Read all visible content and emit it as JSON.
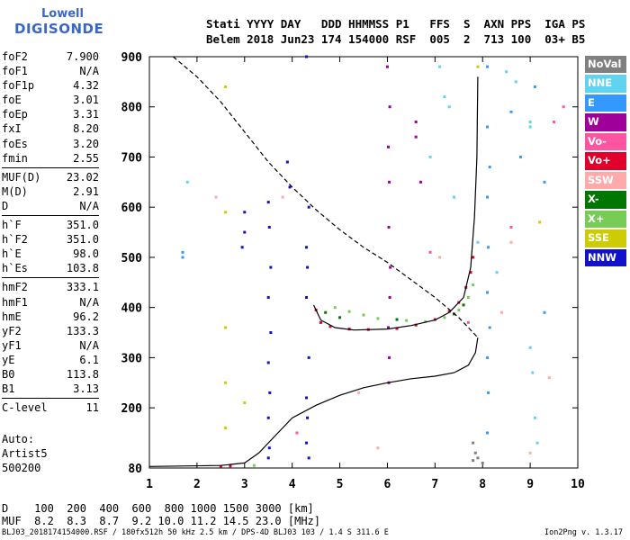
{
  "logo": {
    "line1": "Lowell",
    "line2": "DIGISONDE"
  },
  "header": {
    "labels": "Stati YYYY DAY   DDD HHMMSS P1   FFS  S  AXN PPS  IGA PS",
    "values": "Belem 2018 Jun23 174 154000 RSF  005  2  713 100  03+ B5"
  },
  "params_group1": [
    {
      "name": "foF2",
      "value": "7.900"
    },
    {
      "name": "foF1",
      "value": "N/A"
    },
    {
      "name": "foF1p",
      "value": "4.32"
    },
    {
      "name": "foE",
      "value": "3.01"
    },
    {
      "name": "foEp",
      "value": "3.31"
    },
    {
      "name": "fxI",
      "value": "8.20"
    },
    {
      "name": "foEs",
      "value": "3.20"
    },
    {
      "name": "fmin",
      "value": "2.55"
    }
  ],
  "params_group2": [
    {
      "name": "MUF(D)",
      "value": "23.02"
    },
    {
      "name": "M(D)",
      "value": "2.91"
    },
    {
      "name": "D",
      "value": "N/A"
    }
  ],
  "params_group3": [
    {
      "name": "h`F",
      "value": "351.0"
    },
    {
      "name": "h`F2",
      "value": "351.0"
    },
    {
      "name": "h`E",
      "value": "98.0"
    },
    {
      "name": "h`Es",
      "value": "103.8"
    }
  ],
  "params_group4": [
    {
      "name": "hmF2",
      "value": "333.1"
    },
    {
      "name": "hmF1",
      "value": "N/A"
    },
    {
      "name": "hmE",
      "value": "96.2"
    },
    {
      "name": "yF2",
      "value": "133.3"
    },
    {
      "name": "yF1",
      "value": "N/A"
    },
    {
      "name": "yE",
      "value": "6.1"
    },
    {
      "name": "B0",
      "value": "113.8"
    },
    {
      "name": "B1",
      "value": "3.13"
    }
  ],
  "params_group5": [
    {
      "name": "C-level",
      "value": "11"
    }
  ],
  "auto": {
    "line1": "Auto:",
    "line2": "Artist5",
    "line3": "500200"
  },
  "legend": [
    {
      "label": "NoVal",
      "color": "#808080"
    },
    {
      "label": "NNE",
      "color": "#5fd3f0"
    },
    {
      "label": "E",
      "color": "#3399ff"
    },
    {
      "label": "W",
      "color": "#a0009a"
    },
    {
      "label": "Vo-",
      "color": "#ff55a0"
    },
    {
      "label": "Vo+",
      "color": "#e0002a"
    },
    {
      "label": "SSW",
      "color": "#ffaaaa"
    },
    {
      "label": "X-",
      "color": "#007700"
    },
    {
      "label": "X+",
      "color": "#77cc55"
    },
    {
      "label": "SSE",
      "color": "#cccc00"
    },
    {
      "label": "NNW",
      "color": "#1111cc"
    }
  ],
  "muf_table": {
    "d_line": "D    100  200  400  600  800 1000 1500 3000 [km]",
    "muf_line": "MUF  8.2  8.3  8.7  9.2 10.0 11.2 14.5 23.0 [MHz]"
  },
  "footer": {
    "left": "BLJ03_2018174154000.RSF / 180fx512h 50 kHz 2.5 km / DPS-4D BLJ03 103 / 1.4 S 311.6 E",
    "right": "Ion2Png v. 1.3.17"
  },
  "chart_data": {
    "type": "scatter",
    "xlim": [
      1,
      10
    ],
    "ylim": [
      80,
      900
    ],
    "x_ticks": [
      "1",
      "2",
      "3",
      "4",
      "5",
      "6",
      "7",
      "8",
      "9",
      "10"
    ],
    "y_ticks": [
      "80",
      "200",
      "300",
      "400",
      "500",
      "600",
      "700",
      "800",
      "900"
    ],
    "y_tick_values": [
      80,
      200,
      300,
      400,
      500,
      600,
      700,
      800,
      900
    ],
    "grid": false,
    "legend_position": "right",
    "series": [
      {
        "type": "line",
        "style": "solid",
        "color": "#000000",
        "points": [
          [
            1.0,
            83
          ],
          [
            2.5,
            85
          ],
          [
            3.0,
            90
          ],
          [
            3.3,
            110
          ],
          [
            3.7,
            150
          ],
          [
            4.0,
            180
          ],
          [
            4.5,
            205
          ],
          [
            5.0,
            225
          ],
          [
            5.5,
            240
          ],
          [
            6.0,
            250
          ],
          [
            6.5,
            258
          ],
          [
            7.0,
            263
          ],
          [
            7.4,
            270
          ],
          [
            7.7,
            285
          ],
          [
            7.85,
            310
          ],
          [
            7.9,
            340
          ]
        ]
      },
      {
        "type": "line",
        "style": "solid",
        "color": "#000000",
        "points": [
          [
            4.45,
            405
          ],
          [
            4.6,
            375
          ],
          [
            4.9,
            360
          ],
          [
            5.3,
            355
          ],
          [
            6.0,
            357
          ],
          [
            6.5,
            364
          ],
          [
            7.0,
            375
          ],
          [
            7.3,
            390
          ],
          [
            7.6,
            420
          ],
          [
            7.75,
            480
          ],
          [
            7.83,
            580
          ],
          [
            7.88,
            700
          ],
          [
            7.9,
            860
          ]
        ]
      },
      {
        "type": "line",
        "style": "dashed",
        "color": "#000000",
        "points": [
          [
            1.5,
            900
          ],
          [
            2.0,
            860
          ],
          [
            2.5,
            810
          ],
          [
            3.0,
            750
          ],
          [
            3.5,
            690
          ],
          [
            4.0,
            640
          ],
          [
            4.5,
            595
          ],
          [
            5.0,
            555
          ],
          [
            5.5,
            520
          ],
          [
            6.0,
            490
          ],
          [
            6.5,
            455
          ],
          [
            7.0,
            420
          ],
          [
            7.5,
            380
          ],
          [
            7.9,
            340
          ]
        ]
      },
      {
        "name": "O-trace (Vo+)",
        "type": "points",
        "color": "#e0002a",
        "points": [
          [
            2.5,
            83
          ],
          [
            2.7,
            84
          ],
          [
            4.5,
            395
          ],
          [
            4.6,
            370
          ],
          [
            4.8,
            362
          ],
          [
            5.2,
            357
          ],
          [
            5.6,
            356
          ],
          [
            6.2,
            358
          ],
          [
            6.6,
            365
          ],
          [
            7.0,
            376
          ],
          [
            7.3,
            392
          ],
          [
            7.5,
            410
          ],
          [
            7.65,
            440
          ],
          [
            7.75,
            470
          ],
          [
            7.8,
            500
          ]
        ]
      },
      {
        "name": "X-trace (X+)",
        "type": "points",
        "color": "#77cc55",
        "points": [
          [
            3.2,
            85
          ],
          [
            4.9,
            400
          ],
          [
            5.2,
            392
          ],
          [
            5.5,
            385
          ],
          [
            5.8,
            378
          ],
          [
            6.4,
            374
          ],
          [
            6.8,
            372
          ],
          [
            7.2,
            380
          ],
          [
            7.5,
            395
          ],
          [
            7.7,
            420
          ],
          [
            7.8,
            445
          ]
        ]
      },
      {
        "name": "X-trace (X-)",
        "type": "points",
        "color": "#007700",
        "points": [
          [
            4.7,
            390
          ],
          [
            5.0,
            380
          ],
          [
            6.2,
            376
          ],
          [
            7.4,
            387
          ],
          [
            7.6,
            405
          ]
        ]
      },
      {
        "name": "W echoes",
        "type": "points",
        "color": "#a0009a",
        "points": [
          [
            6.0,
            880
          ],
          [
            6.05,
            800
          ],
          [
            6.02,
            720
          ],
          [
            6.04,
            650
          ],
          [
            6.03,
            560
          ],
          [
            6.06,
            480
          ],
          [
            6.05,
            420
          ],
          [
            6.02,
            360
          ],
          [
            6.04,
            300
          ],
          [
            6.03,
            250
          ],
          [
            6.6,
            770
          ],
          [
            6.6,
            740
          ],
          [
            6.7,
            650
          ]
        ]
      },
      {
        "name": "NNW echoes",
        "type": "points",
        "color": "#1111cc",
        "points": [
          [
            3.5,
            610
          ],
          [
            3.52,
            560
          ],
          [
            3.55,
            480
          ],
          [
            3.5,
            420
          ],
          [
            3.55,
            350
          ],
          [
            3.5,
            290
          ],
          [
            3.53,
            230
          ],
          [
            3.5,
            180
          ],
          [
            3.52,
            120
          ],
          [
            3.5,
            100
          ],
          [
            3.0,
            590
          ],
          [
            3.0,
            550
          ],
          [
            2.95,
            520
          ],
          [
            4.3,
            900
          ],
          [
            4.35,
            600
          ],
          [
            4.3,
            520
          ],
          [
            4.32,
            480
          ],
          [
            4.3,
            420
          ],
          [
            4.35,
            300
          ],
          [
            4.3,
            220
          ],
          [
            4.32,
            180
          ],
          [
            4.3,
            130
          ],
          [
            4.35,
            100
          ],
          [
            3.9,
            690
          ],
          [
            3.95,
            640
          ]
        ]
      },
      {
        "name": "E echoes",
        "type": "points",
        "color": "#3399ff",
        "points": [
          [
            8.1,
            880
          ],
          [
            8.1,
            760
          ],
          [
            8.15,
            680
          ],
          [
            8.1,
            620
          ],
          [
            8.12,
            520
          ],
          [
            8.1,
            430
          ],
          [
            8.15,
            360
          ],
          [
            8.1,
            300
          ],
          [
            8.12,
            230
          ],
          [
            8.1,
            150
          ],
          [
            8.6,
            790
          ],
          [
            8.8,
            700
          ],
          [
            9.1,
            840
          ],
          [
            9.3,
            650
          ],
          [
            9.3,
            390
          ],
          [
            1.7,
            500
          ],
          [
            1.7,
            510
          ]
        ]
      },
      {
        "name": "NNE echoes",
        "type": "points",
        "color": "#5fd3f0",
        "points": [
          [
            7.1,
            880
          ],
          [
            7.2,
            820
          ],
          [
            7.3,
            800
          ],
          [
            6.9,
            700
          ],
          [
            8.5,
            870
          ],
          [
            8.7,
            850
          ],
          [
            9.0,
            770
          ],
          [
            9.0,
            760
          ],
          [
            7.4,
            620
          ],
          [
            7.9,
            530
          ],
          [
            8.3,
            470
          ],
          [
            9.0,
            320
          ],
          [
            9.05,
            270
          ],
          [
            9.1,
            180
          ],
          [
            9.15,
            130
          ],
          [
            1.8,
            650
          ]
        ]
      },
      {
        "name": "SSW echoes",
        "type": "points",
        "color": "#ffaaaa",
        "points": [
          [
            2.4,
            620
          ],
          [
            3.8,
            620
          ],
          [
            7.1,
            500
          ],
          [
            8.6,
            530
          ],
          [
            8.4,
            390
          ],
          [
            9.4,
            260
          ],
          [
            9.0,
            110
          ],
          [
            5.8,
            120
          ],
          [
            5.4,
            230
          ]
        ]
      },
      {
        "name": "SSE echoes",
        "type": "points",
        "color": "#cccc00",
        "points": [
          [
            2.6,
            590
          ],
          [
            2.6,
            360
          ],
          [
            2.6,
            250
          ],
          [
            2.6,
            160
          ],
          [
            2.6,
            840
          ],
          [
            9.2,
            570
          ],
          [
            7.9,
            880
          ],
          [
            3.0,
            210
          ]
        ]
      },
      {
        "name": "Vo- echoes",
        "type": "points",
        "color": "#ff55a0",
        "points": [
          [
            9.7,
            800
          ],
          [
            9.5,
            770
          ],
          [
            8.6,
            560
          ],
          [
            6.9,
            510
          ],
          [
            7.7,
            370
          ],
          [
            4.1,
            150
          ]
        ]
      },
      {
        "name": "NoVal echoes",
        "type": "points",
        "color": "#808080",
        "points": [
          [
            7.8,
            130
          ],
          [
            7.85,
            110
          ],
          [
            7.9,
            100
          ],
          [
            7.8,
            95
          ],
          [
            8.0,
            90
          ]
        ]
      }
    ]
  }
}
